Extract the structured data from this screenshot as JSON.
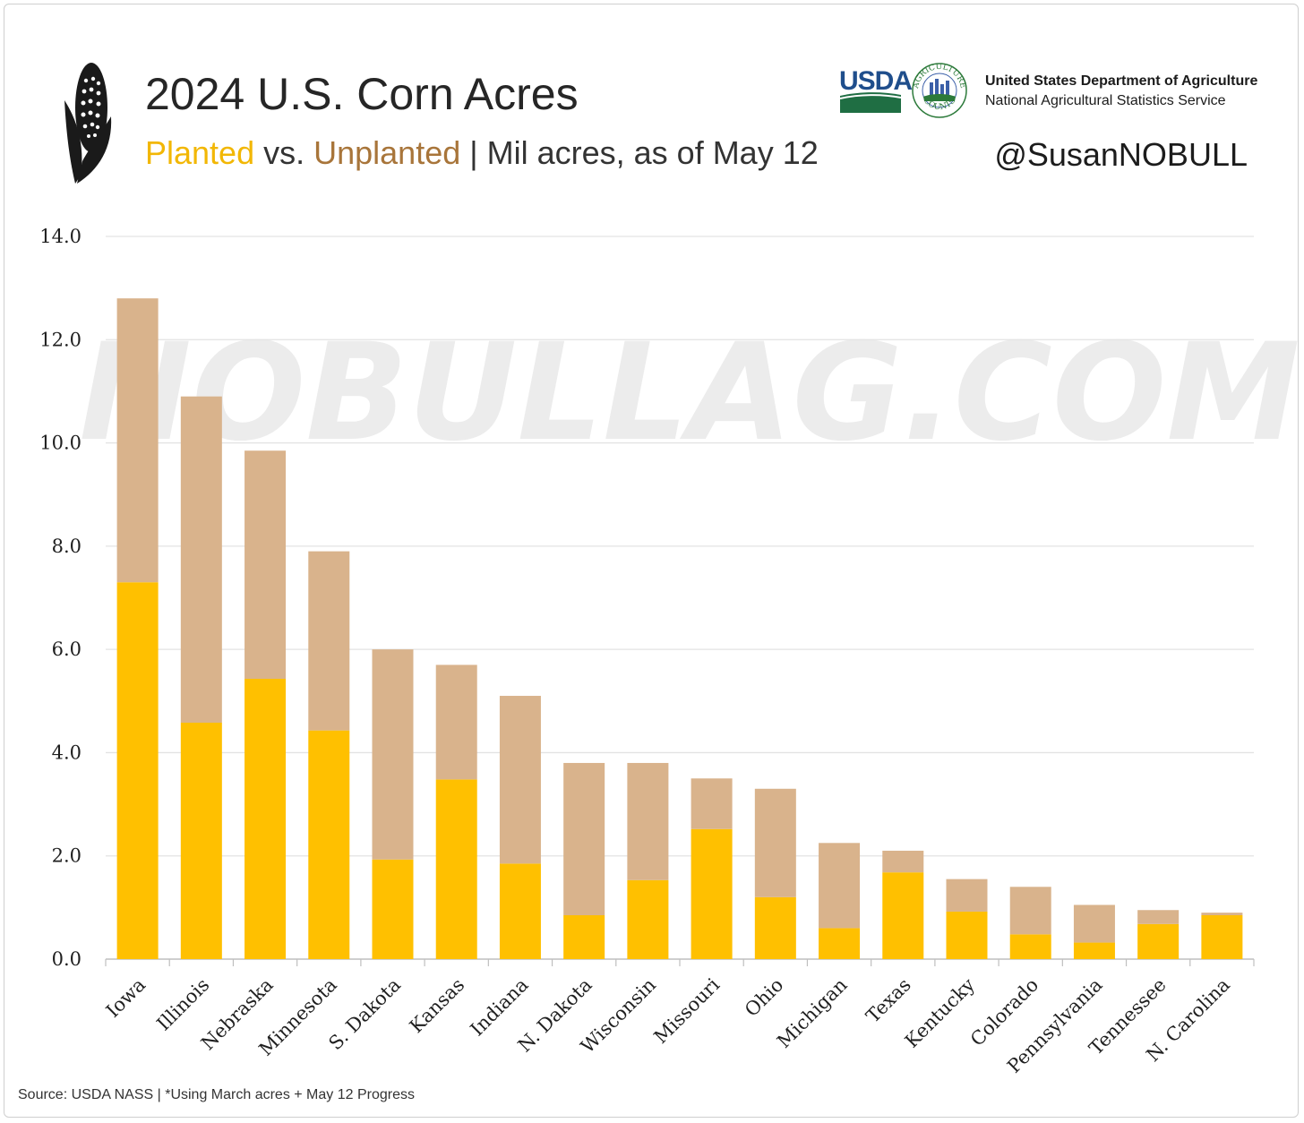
{
  "header": {
    "title": "2024 U.S. Corn Acres",
    "subtitle_planted": "Planted",
    "subtitle_vs": " vs. ",
    "subtitle_unplanted": "Unplanted",
    "subtitle_rest": " | Mil acres, as of May 12",
    "handle": "@SusanNOBULL"
  },
  "logo": {
    "usda_word": "USDA",
    "counts_top": "AGRICULTURE",
    "counts_bottom": "COUNTS",
    "agency_name": "United States Department of Agriculture",
    "agency_sub": "National Agricultural Statistics Service"
  },
  "watermark": "NOBULLAG.COM",
  "footer": {
    "source": "Source: USDA NASS | *Using March acres + May 12 Progress"
  },
  "colors": {
    "planted": "#FFC000",
    "unplanted": "#D9B38C",
    "planted_text": "#F2B705",
    "unplanted_text": "#A8753A",
    "grid": "#e3e3e3",
    "axis": "#bfbfbf"
  },
  "icons": [
    "corn-icon",
    "usda-logo-icon",
    "agriculture-counts-icon"
  ],
  "chart_data": {
    "type": "bar",
    "stacked": true,
    "categories": [
      "Iowa",
      "Illinois",
      "Nebraska",
      "Minnesota",
      "S. Dakota",
      "Kansas",
      "Indiana",
      "N. Dakota",
      "Wisconsin",
      "Missouri",
      "Ohio",
      "Michigan",
      "Texas",
      "Kentucky",
      "Colorado",
      "Pennsylvania",
      "Tennessee",
      "N. Carolina"
    ],
    "series": [
      {
        "name": "Planted",
        "values": [
          7.3,
          4.58,
          5.43,
          4.43,
          1.93,
          3.48,
          1.85,
          0.85,
          1.53,
          2.52,
          1.2,
          0.6,
          1.68,
          0.92,
          0.48,
          0.32,
          0.68,
          0.85
        ]
      },
      {
        "name": "Unplanted",
        "values": [
          5.5,
          6.32,
          4.42,
          3.47,
          4.07,
          2.22,
          3.25,
          2.95,
          2.27,
          0.98,
          2.1,
          1.65,
          0.42,
          0.63,
          0.92,
          0.73,
          0.27,
          0.05
        ]
      }
    ],
    "yticks": [
      "0.0",
      "2.0",
      "4.0",
      "6.0",
      "8.0",
      "10.0",
      "12.0",
      "14.0"
    ],
    "ylim": [
      0,
      14
    ],
    "grid": true,
    "legend": "in subtitle"
  }
}
